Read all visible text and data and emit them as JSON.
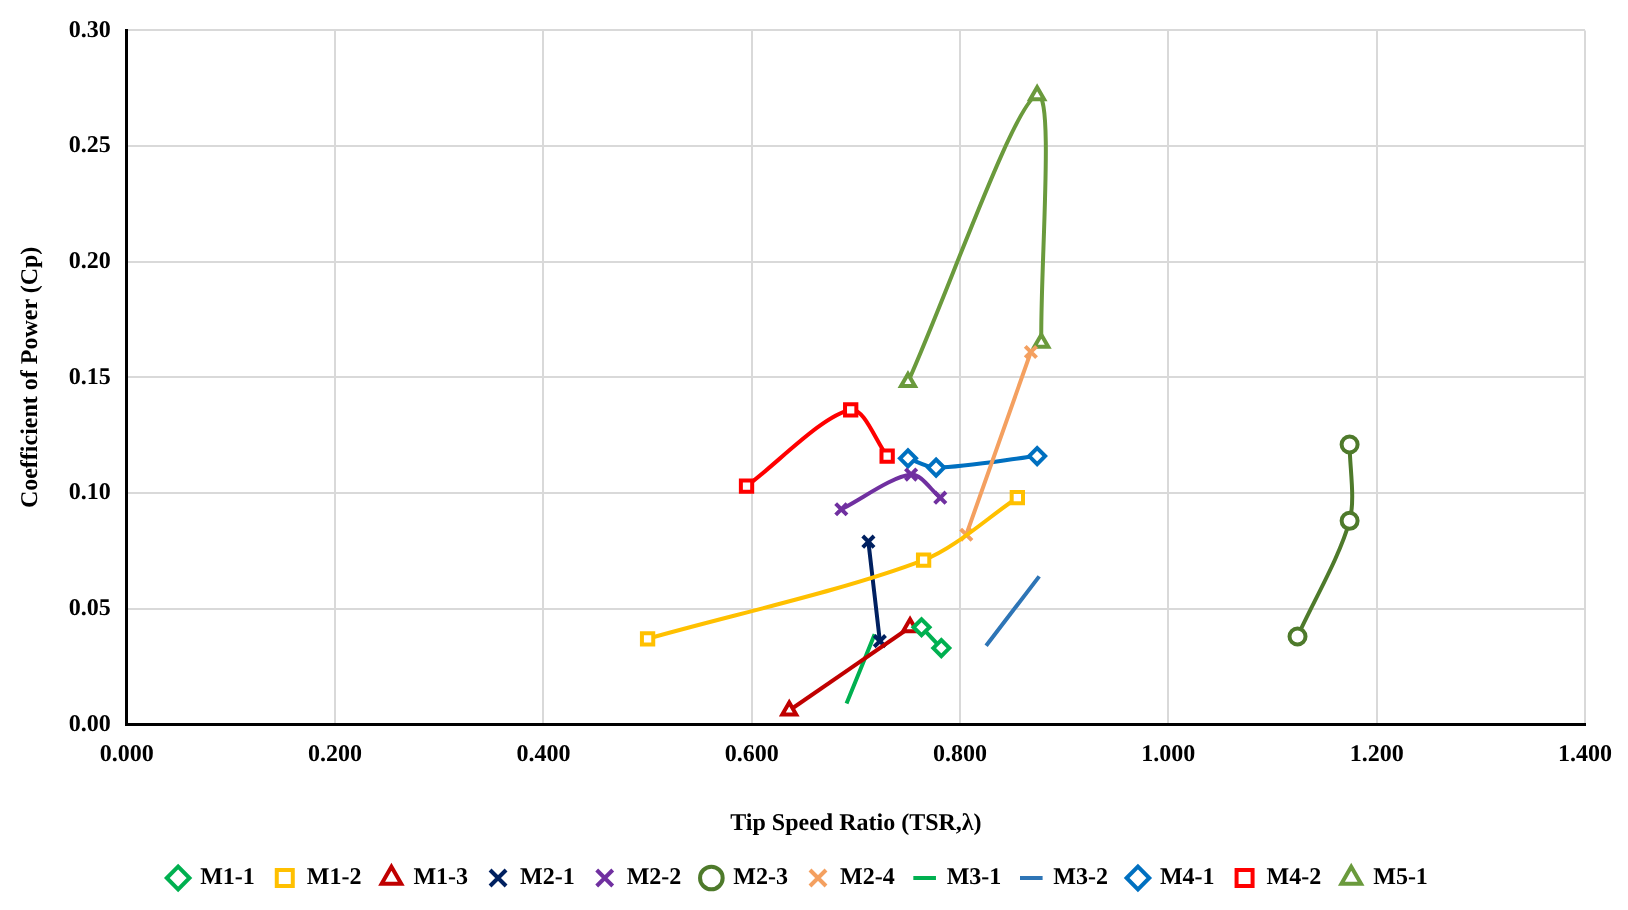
{
  "chart_data": {
    "type": "line",
    "xlabel": "Tip Speed Ratio (TSR,λ)",
    "ylabel": "Coefficient of Power (Cp)",
    "xlim": [
      0,
      1.4
    ],
    "ylim": [
      0,
      0.3
    ],
    "xticks": [
      {
        "value": 0,
        "label": "0.000"
      },
      {
        "value": 0.2,
        "label": "0.200"
      },
      {
        "value": 0.4,
        "label": "0.400"
      },
      {
        "value": 0.6,
        "label": "0.600"
      },
      {
        "value": 0.8,
        "label": "0.800"
      },
      {
        "value": 1,
        "label": "1.000"
      },
      {
        "value": 1.2,
        "label": "1.200"
      },
      {
        "value": 1.4,
        "label": "1.400"
      }
    ],
    "yticks": [
      {
        "value": 0,
        "label": "0.00"
      },
      {
        "value": 0.05,
        "label": "0.05"
      },
      {
        "value": 0.1,
        "label": "0.10"
      },
      {
        "value": 0.15,
        "label": "0.15"
      },
      {
        "value": 0.2,
        "label": "0.20"
      },
      {
        "value": 0.25,
        "label": "0.25"
      },
      {
        "value": 0.3,
        "label": "0.30"
      }
    ],
    "grid": true,
    "legend": "bottom",
    "series": [
      {
        "name": "M1-1",
        "color": "#00b050",
        "marker": "diamond",
        "x": [
          0.763,
          0.782
        ],
        "values": [
          0.042,
          0.033
        ]
      },
      {
        "name": "M1-2",
        "color": "#ffc000",
        "marker": "square",
        "x": [
          0.5,
          0.765,
          0.855
        ],
        "values": [
          0.037,
          0.071,
          0.098
        ]
      },
      {
        "name": "M1-3",
        "color": "#c00000",
        "marker": "triangle",
        "x": [
          0.636,
          0.752
        ],
        "values": [
          0.006,
          0.042
        ]
      },
      {
        "name": "M2-1",
        "color": "#002060",
        "marker": "cross",
        "x": [
          0.712,
          0.723
        ],
        "values": [
          0.079,
          0.036
        ]
      },
      {
        "name": "M2-2",
        "color": "#7030a0",
        "marker": "cross",
        "x": [
          0.686,
          0.753,
          0.781
        ],
        "values": [
          0.093,
          0.108,
          0.098
        ]
      },
      {
        "name": "M2-3",
        "color": "#4e7a2b",
        "marker": "circle",
        "x": [
          1.124,
          1.174,
          1.174
        ],
        "values": [
          0.038,
          0.088,
          0.121
        ]
      },
      {
        "name": "M2-4",
        "color": "#f4a060",
        "marker": "cross",
        "x": [
          0.806,
          0.868
        ],
        "values": [
          0.082,
          0.161
        ]
      },
      {
        "name": "M3-1",
        "color": "#00b050",
        "marker": "none",
        "x": [
          0.691,
          0.718
        ],
        "values": [
          0.009,
          0.039
        ]
      },
      {
        "name": "M3-2",
        "color": "#2e75b6",
        "marker": "none",
        "x": [
          0.825,
          0.876
        ],
        "values": [
          0.034,
          0.064
        ]
      },
      {
        "name": "M4-1",
        "color": "#0070c0",
        "marker": "diamond",
        "x": [
          0.75,
          0.777,
          0.874
        ],
        "values": [
          0.115,
          0.111,
          0.116
        ]
      },
      {
        "name": "M4-2",
        "color": "#ff0000",
        "marker": "square",
        "x": [
          0.595,
          0.695,
          0.73
        ],
        "values": [
          0.103,
          0.136,
          0.116
        ]
      },
      {
        "name": "M5-1",
        "color": "#6a9a3c",
        "marker": "triangle",
        "x": [
          0.75,
          0.874,
          0.878
        ],
        "values": [
          0.148,
          0.272,
          0.165
        ]
      }
    ]
  }
}
